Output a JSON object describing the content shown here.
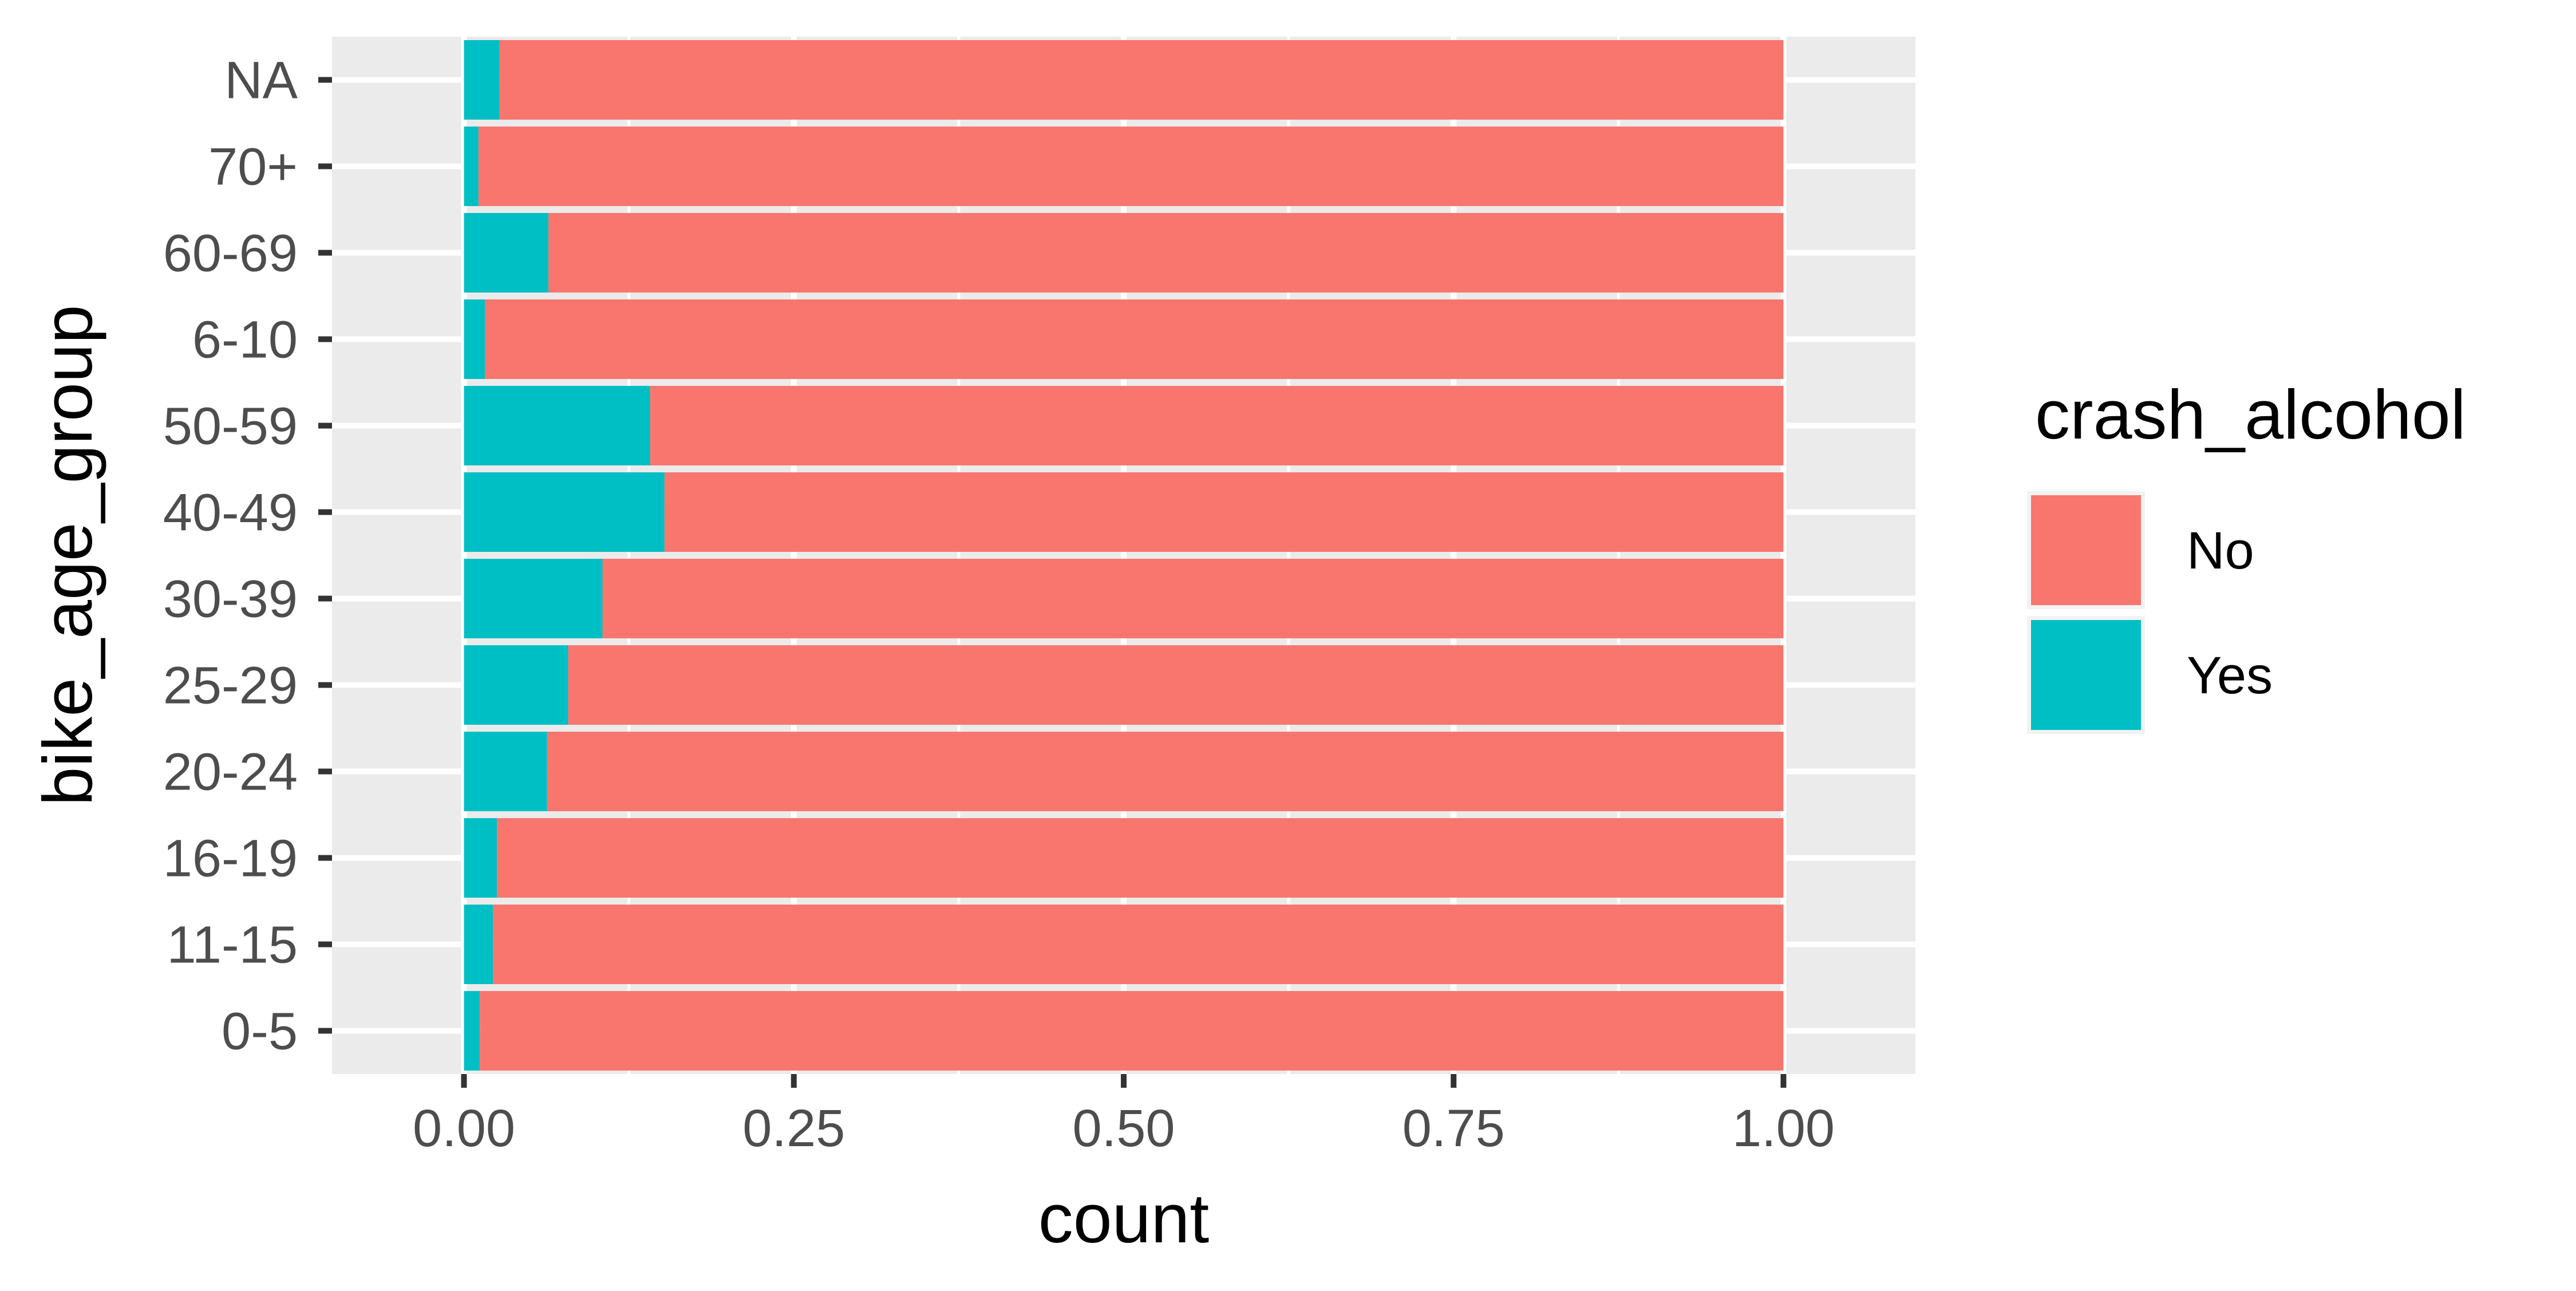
{
  "chart_data": {
    "type": "bar",
    "orientation": "horizontal",
    "stacked": "fill",
    "categories": [
      "0-5",
      "11-15",
      "16-19",
      "20-24",
      "25-29",
      "30-39",
      "40-49",
      "50-59",
      "6-10",
      "60-69",
      "70+",
      "NA"
    ],
    "series": [
      {
        "name": "No",
        "color": "#F8766D",
        "values": [
          0.988,
          0.978,
          0.975,
          0.937,
          0.921,
          0.895,
          0.848,
          0.859,
          0.984,
          0.936,
          0.989,
          0.973
        ]
      },
      {
        "name": "Yes",
        "color": "#00BFC4",
        "values": [
          0.012,
          0.022,
          0.025,
          0.063,
          0.079,
          0.105,
          0.152,
          0.141,
          0.016,
          0.064,
          0.011,
          0.027
        ]
      }
    ],
    "xlabel": "count",
    "ylabel": "bike_age_group",
    "xlim": [
      -0.1,
      1.1
    ],
    "xticks": [
      "0.00",
      "0.25",
      "0.50",
      "0.75",
      "1.00"
    ],
    "xtick_values": [
      0,
      0.25,
      0.5,
      0.75,
      1.0
    ],
    "grid": true,
    "legend": {
      "title": "crash_alcohol",
      "position": "right",
      "items": [
        "No",
        "Yes"
      ]
    },
    "colors": {
      "panel_bg": "#EBEBEB",
      "grid": "#FFFFFF",
      "no": "#F8766D",
      "yes": "#00BFC4"
    }
  }
}
